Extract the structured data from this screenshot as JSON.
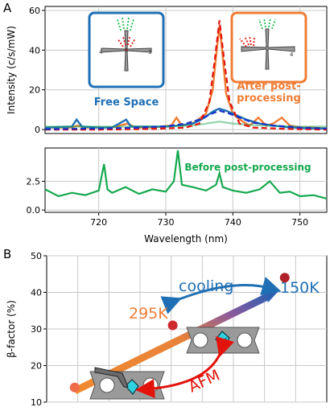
{
  "panel_a": {
    "label": "A",
    "annotation_free_space": "Free Space",
    "annotation_after_1": "After post-",
    "annotation_after_2": "processing",
    "annotation_before": "Before post-processing",
    "colors": {
      "free_space": "#1f6fb4",
      "after": "#ef7d35",
      "fit": "#e3120b",
      "before": "#16a84f",
      "fit_blue": "#1731c9"
    }
  },
  "panel_b": {
    "label": "B",
    "annotation_cooling": "cooling",
    "annotation_temp_low": "150K",
    "annotation_temp_high": "295K",
    "annotation_afm": "AFM",
    "colors": {
      "cooling": "#1f6fb4",
      "temp_high": "#ef7d35",
      "temp_low": "#1f6fb4",
      "afm": "#e3120b",
      "point_start": "#ef6b4a",
      "point_mid": "#d0282e",
      "point_end": "#b0222a"
    }
  },
  "chart_data": [
    {
      "type": "line",
      "panel": "A-top",
      "xlim": [
        712,
        754
      ],
      "ylim": [
        -2,
        62
      ],
      "yticks": [
        0,
        20,
        40,
        60
      ],
      "ylabel": "Intensity (c/s/mW)",
      "series": [
        {
          "color": "#ef7d35",
          "x": [
            712,
            716,
            716.8,
            718,
            722,
            724.3,
            725.5,
            728,
            730.8,
            731.6,
            732.4,
            734,
            736,
            737,
            737.6,
            738,
            738.4,
            739,
            740,
            741,
            742.5,
            743.8,
            745,
            746,
            747.3,
            748.5,
            750,
            752,
            754
          ],
          "y": [
            1,
            1,
            2,
            1,
            1,
            3,
            1,
            1,
            2,
            6,
            2,
            3,
            8,
            20,
            40,
            52,
            40,
            18,
            8,
            5,
            2,
            6,
            2,
            3,
            6,
            2,
            1,
            1,
            0.5
          ]
        },
        {
          "color": "#1f6fb4",
          "x": [
            712,
            716,
            716.7,
            717.5,
            720,
            722,
            724.1,
            724.8,
            726,
            728,
            730,
            732,
            734,
            735,
            736,
            737,
            737.6,
            738,
            739,
            740,
            741,
            742,
            744,
            746,
            748,
            750,
            752,
            754
          ],
          "y": [
            1,
            1.5,
            5,
            1.5,
            1,
            1,
            5,
            1.5,
            1.5,
            1.5,
            1.5,
            2,
            3,
            4.5,
            6.5,
            9,
            10,
            10.5,
            9.5,
            8,
            6.5,
            5,
            3,
            2,
            1.2,
            0.8,
            0.6,
            0.5
          ]
        },
        {
          "color": "#16a84f",
          "x": [
            712,
            720,
            728,
            734,
            736,
            738,
            740,
            744,
            750,
            754
          ],
          "y": [
            1.5,
            1.5,
            1.5,
            2,
            3,
            4,
            3,
            2,
            1.5,
            1.5
          ]
        },
        {
          "color": "#e3120b",
          "x": [
            712,
            720,
            728,
            733,
            735,
            736.5,
            737.3,
            738,
            738.7,
            739.5,
            741,
            743,
            748,
            754
          ],
          "y": [
            0,
            0,
            0.3,
            1,
            3,
            14,
            35,
            55,
            35,
            14,
            3,
            1,
            0.3,
            0
          ]
        },
        {
          "color": "#1731c9",
          "x": [
            712,
            720,
            726,
            730,
            733,
            735,
            736.5,
            738,
            739.5,
            741,
            743,
            746,
            750,
            754
          ],
          "y": [
            0.2,
            0.5,
            1,
            1.6,
            3,
            5,
            7.5,
            9.5,
            8,
            6,
            3.5,
            2,
            1,
            0.5
          ]
        }
      ]
    },
    {
      "type": "line",
      "panel": "A-bottom",
      "xlim": [
        712,
        754
      ],
      "ylim": [
        -0.2,
        5.4
      ],
      "yticks": [
        0.0,
        2.5
      ],
      "xticks": [
        720,
        730,
        740,
        750
      ],
      "xlabel": "Wavelength (nm)",
      "series": [
        {
          "color": "#16a84f",
          "x": [
            712,
            714,
            716,
            718,
            720,
            720.8,
            721.3,
            722,
            724,
            726,
            728,
            730,
            731.2,
            731.8,
            732.4,
            734,
            736,
            737.5,
            738,
            738.5,
            740,
            742,
            744,
            745.5,
            747,
            748.5,
            750,
            752,
            754
          ],
          "y": [
            1.8,
            1.2,
            1.5,
            1.3,
            1.7,
            4.0,
            1.8,
            1.5,
            2.0,
            1.4,
            1.8,
            1.6,
            2.5,
            5.2,
            2.2,
            2.0,
            1.7,
            2.2,
            3.2,
            2.0,
            1.7,
            1.5,
            1.8,
            2.5,
            1.5,
            1.6,
            1.2,
            1.3,
            1.0
          ]
        }
      ]
    },
    {
      "type": "scatter",
      "panel": "B",
      "xlim": [
        0,
        10
      ],
      "ylim": [
        10,
        50
      ],
      "yticks": [
        10,
        20,
        30,
        40,
        50
      ],
      "ylabel": "β-factor (%)",
      "points": [
        {
          "x": 1.0,
          "y": 14.0
        },
        {
          "x": 4.5,
          "y": 31.0
        },
        {
          "x": 8.5,
          "y": 44.0
        }
      ]
    }
  ]
}
